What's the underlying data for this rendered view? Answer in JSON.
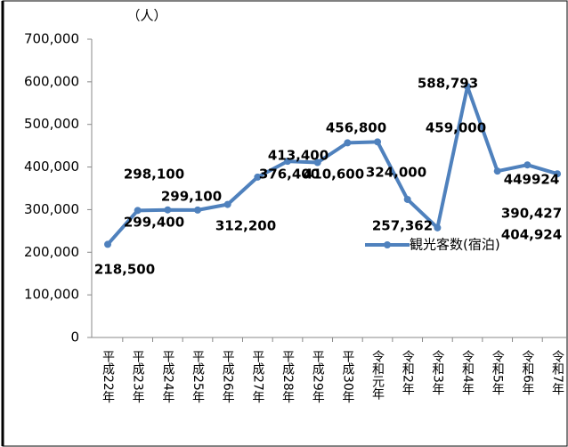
{
  "chart_data": {
    "type": "line",
    "unit_label": "（人）",
    "categories": [
      "平成22年",
      "平成23年",
      "平成24年",
      "平成25年",
      "平成26年",
      "平成27年",
      "平成28年",
      "平成29年",
      "平成30年",
      "令和元年",
      "令和2年",
      "令和3年",
      "令和4年",
      "令和5年",
      "令和6年",
      "令和7年"
    ],
    "series": [
      {
        "name": "観光客数(宿泊)",
        "color": "#4f81bd",
        "values": [
          218500,
          298100,
          299400,
          299100,
          312200,
          376400,
          413400,
          410600,
          456800,
          459000,
          324000,
          257362,
          588793,
          390427,
          404924,
          384000
        ],
        "value_labels": [
          "218,500",
          "298,100",
          "299,400",
          "299,100",
          "312,200",
          "376,400",
          "413,400",
          "410,600",
          "456,800",
          "459,000",
          "324,000",
          "257,362",
          "588,793",
          "390,427",
          "404,924",
          null
        ]
      }
    ],
    "annotations": [
      "449924"
    ],
    "ylim": [
      0,
      700000
    ],
    "yticks": [
      {
        "value": 0,
        "label": "0"
      },
      {
        "value": 100000,
        "label": "100,000"
      },
      {
        "value": 200000,
        "label": "200,000"
      },
      {
        "value": 300000,
        "label": "300,000"
      },
      {
        "value": 400000,
        "label": "400,000"
      },
      {
        "value": 500000,
        "label": "500,000"
      },
      {
        "value": 600000,
        "label": "600,000"
      },
      {
        "value": 700000,
        "label": "700,000"
      }
    ]
  }
}
